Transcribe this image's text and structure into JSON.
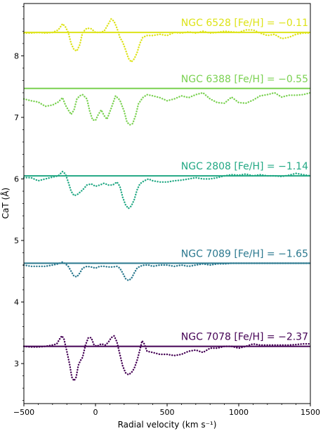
{
  "chart_data": {
    "type": "line",
    "xlabel": "Radial velocity (km s⁻¹)",
    "ylabel": "CaT (Å)",
    "xlim": [
      -500,
      1500
    ],
    "ylim": [
      2.35,
      8.85
    ],
    "x_ticks": [
      -500,
      0,
      500,
      1000,
      1500
    ],
    "x_tick_labels": [
      "−500",
      "0",
      "500",
      "1000",
      "1500"
    ],
    "y_ticks": [
      3,
      4,
      5,
      6,
      7,
      8
    ],
    "y_tick_labels": [
      "3",
      "4",
      "5",
      "6",
      "7",
      "8"
    ],
    "grid": false,
    "series": [
      {
        "name": "NGC 6528  [Fe/H] = −0.11",
        "color": "#dde318",
        "baseline": 8.38,
        "dotted": [
          [
            -500,
            8.37
          ],
          [
            -450,
            8.37
          ],
          [
            -400,
            8.38
          ],
          [
            -350,
            8.37
          ],
          [
            -300,
            8.38
          ],
          [
            -260,
            8.42
          ],
          [
            -230,
            8.52
          ],
          [
            -210,
            8.47
          ],
          [
            -190,
            8.38
          ],
          [
            -170,
            8.2
          ],
          [
            -150,
            8.1
          ],
          [
            -130,
            8.08
          ],
          [
            -110,
            8.18
          ],
          [
            -90,
            8.38
          ],
          [
            -60,
            8.45
          ],
          [
            -30,
            8.44
          ],
          [
            0,
            8.38
          ],
          [
            30,
            8.38
          ],
          [
            60,
            8.4
          ],
          [
            90,
            8.52
          ],
          [
            110,
            8.6
          ],
          [
            130,
            8.56
          ],
          [
            150,
            8.45
          ],
          [
            170,
            8.3
          ],
          [
            190,
            8.22
          ],
          [
            210,
            8.1
          ],
          [
            230,
            7.96
          ],
          [
            250,
            7.9
          ],
          [
            270,
            7.95
          ],
          [
            290,
            8.05
          ],
          [
            310,
            8.2
          ],
          [
            330,
            8.3
          ],
          [
            360,
            8.33
          ],
          [
            400,
            8.33
          ],
          [
            450,
            8.35
          ],
          [
            500,
            8.33
          ],
          [
            550,
            8.38
          ],
          [
            600,
            8.37
          ],
          [
            650,
            8.39
          ],
          [
            700,
            8.37
          ],
          [
            750,
            8.4
          ],
          [
            800,
            8.37
          ],
          [
            850,
            8.38
          ],
          [
            900,
            8.4
          ],
          [
            950,
            8.39
          ],
          [
            1000,
            8.38
          ],
          [
            1050,
            8.42
          ],
          [
            1100,
            8.42
          ],
          [
            1150,
            8.37
          ],
          [
            1200,
            8.33
          ],
          [
            1250,
            8.35
          ],
          [
            1300,
            8.28
          ],
          [
            1350,
            8.3
          ],
          [
            1400,
            8.35
          ],
          [
            1450,
            8.37
          ],
          [
            1500,
            8.37
          ]
        ]
      },
      {
        "name": "NGC 6388  [Fe/H] = −0.55",
        "color": "#7ad151",
        "baseline": 7.47,
        "dotted": [
          [
            -500,
            7.3
          ],
          [
            -450,
            7.27
          ],
          [
            -400,
            7.25
          ],
          [
            -350,
            7.18
          ],
          [
            -300,
            7.2
          ],
          [
            -260,
            7.25
          ],
          [
            -230,
            7.32
          ],
          [
            -210,
            7.2
          ],
          [
            -190,
            7.12
          ],
          [
            -170,
            7.05
          ],
          [
            -150,
            7.12
          ],
          [
            -130,
            7.3
          ],
          [
            -110,
            7.35
          ],
          [
            -90,
            7.37
          ],
          [
            -60,
            7.3
          ],
          [
            -40,
            7.1
          ],
          [
            -20,
            6.96
          ],
          [
            0,
            6.95
          ],
          [
            20,
            7.05
          ],
          [
            40,
            7.12
          ],
          [
            60,
            7.03
          ],
          [
            80,
            6.97
          ],
          [
            110,
            7.15
          ],
          [
            140,
            7.35
          ],
          [
            170,
            7.28
          ],
          [
            200,
            7.1
          ],
          [
            220,
            6.92
          ],
          [
            240,
            6.88
          ],
          [
            260,
            6.9
          ],
          [
            280,
            7.03
          ],
          [
            300,
            7.22
          ],
          [
            330,
            7.32
          ],
          [
            360,
            7.37
          ],
          [
            400,
            7.35
          ],
          [
            450,
            7.32
          ],
          [
            500,
            7.27
          ],
          [
            550,
            7.3
          ],
          [
            600,
            7.35
          ],
          [
            650,
            7.32
          ],
          [
            700,
            7.37
          ],
          [
            750,
            7.4
          ],
          [
            800,
            7.3
          ],
          [
            850,
            7.24
          ],
          [
            900,
            7.23
          ],
          [
            950,
            7.33
          ],
          [
            1000,
            7.24
          ],
          [
            1050,
            7.23
          ],
          [
            1100,
            7.28
          ],
          [
            1150,
            7.35
          ],
          [
            1200,
            7.37
          ],
          [
            1250,
            7.4
          ],
          [
            1300,
            7.33
          ],
          [
            1350,
            7.36
          ],
          [
            1400,
            7.36
          ],
          [
            1450,
            7.37
          ],
          [
            1500,
            7.4
          ]
        ]
      },
      {
        "name": "NGC 2808  [Fe/H] = −1.14",
        "color": "#22a884",
        "baseline": 6.05,
        "dotted": [
          [
            -500,
            6.02
          ],
          [
            -450,
            6.02
          ],
          [
            -400,
            5.97
          ],
          [
            -350,
            6.0
          ],
          [
            -300,
            6.03
          ],
          [
            -260,
            6.05
          ],
          [
            -230,
            6.12
          ],
          [
            -210,
            6.08
          ],
          [
            -190,
            5.95
          ],
          [
            -170,
            5.8
          ],
          [
            -150,
            5.73
          ],
          [
            -130,
            5.74
          ],
          [
            -110,
            5.78
          ],
          [
            -90,
            5.82
          ],
          [
            -60,
            5.9
          ],
          [
            -30,
            5.92
          ],
          [
            0,
            5.88
          ],
          [
            30,
            5.9
          ],
          [
            60,
            5.93
          ],
          [
            90,
            5.9
          ],
          [
            120,
            5.9
          ],
          [
            150,
            5.95
          ],
          [
            170,
            5.88
          ],
          [
            190,
            5.7
          ],
          [
            210,
            5.58
          ],
          [
            230,
            5.52
          ],
          [
            250,
            5.56
          ],
          [
            270,
            5.66
          ],
          [
            290,
            5.82
          ],
          [
            310,
            5.92
          ],
          [
            340,
            5.97
          ],
          [
            370,
            6.0
          ],
          [
            400,
            5.97
          ],
          [
            450,
            5.95
          ],
          [
            500,
            5.95
          ],
          [
            550,
            5.97
          ],
          [
            600,
            5.98
          ],
          [
            650,
            6.0
          ],
          [
            700,
            6.02
          ],
          [
            750,
            6.0
          ],
          [
            800,
            6.0
          ],
          [
            850,
            6.02
          ],
          [
            900,
            6.05
          ],
          [
            950,
            6.07
          ],
          [
            1000,
            6.06
          ],
          [
            1050,
            6.08
          ],
          [
            1100,
            6.05
          ],
          [
            1150,
            6.07
          ],
          [
            1200,
            6.05
          ],
          [
            1250,
            6.05
          ],
          [
            1300,
            6.04
          ],
          [
            1350,
            6.06
          ],
          [
            1400,
            6.09
          ],
          [
            1450,
            6.07
          ],
          [
            1500,
            6.05
          ]
        ]
      },
      {
        "name": "NGC 7089  [Fe/H] = −1.65",
        "color": "#2a788e",
        "baseline": 4.63,
        "dotted": [
          [
            -500,
            4.6
          ],
          [
            -450,
            4.58
          ],
          [
            -400,
            4.58
          ],
          [
            -350,
            4.58
          ],
          [
            -300,
            4.6
          ],
          [
            -260,
            4.62
          ],
          [
            -230,
            4.65
          ],
          [
            -210,
            4.62
          ],
          [
            -190,
            4.58
          ],
          [
            -170,
            4.5
          ],
          [
            -150,
            4.42
          ],
          [
            -130,
            4.41
          ],
          [
            -110,
            4.47
          ],
          [
            -90,
            4.55
          ],
          [
            -60,
            4.58
          ],
          [
            -30,
            4.57
          ],
          [
            0,
            4.55
          ],
          [
            30,
            4.58
          ],
          [
            60,
            4.58
          ],
          [
            90,
            4.57
          ],
          [
            120,
            4.57
          ],
          [
            150,
            4.58
          ],
          [
            170,
            4.55
          ],
          [
            190,
            4.47
          ],
          [
            210,
            4.38
          ],
          [
            230,
            4.35
          ],
          [
            250,
            4.38
          ],
          [
            270,
            4.47
          ],
          [
            290,
            4.55
          ],
          [
            310,
            4.58
          ],
          [
            340,
            4.6
          ],
          [
            370,
            4.6
          ],
          [
            400,
            4.58
          ],
          [
            450,
            4.6
          ],
          [
            500,
            4.6
          ],
          [
            550,
            4.58
          ],
          [
            600,
            4.6
          ],
          [
            650,
            4.58
          ],
          [
            700,
            4.6
          ],
          [
            750,
            4.62
          ],
          [
            800,
            4.6
          ],
          [
            850,
            4.62
          ],
          [
            900,
            4.62
          ],
          [
            950,
            4.63
          ],
          [
            1000,
            4.63
          ],
          [
            1050,
            4.63
          ],
          [
            1100,
            4.63
          ],
          [
            1150,
            4.63
          ],
          [
            1200,
            4.63
          ],
          [
            1250,
            4.63
          ],
          [
            1300,
            4.63
          ],
          [
            1350,
            4.63
          ],
          [
            1400,
            4.63
          ],
          [
            1450,
            4.63
          ],
          [
            1500,
            4.63
          ]
        ]
      },
      {
        "name": "NGC 7078  [Fe/H] = −2.37",
        "color": "#440154",
        "baseline": 3.28,
        "dotted": [
          [
            -500,
            3.28
          ],
          [
            -450,
            3.27
          ],
          [
            -400,
            3.27
          ],
          [
            -350,
            3.28
          ],
          [
            -300,
            3.3
          ],
          [
            -270,
            3.32
          ],
          [
            -250,
            3.4
          ],
          [
            -235,
            3.45
          ],
          [
            -220,
            3.4
          ],
          [
            -200,
            3.2
          ],
          [
            -180,
            2.98
          ],
          [
            -165,
            2.78
          ],
          [
            -150,
            2.72
          ],
          [
            -135,
            2.78
          ],
          [
            -120,
            2.97
          ],
          [
            -105,
            3.05
          ],
          [
            -90,
            3.1
          ],
          [
            -70,
            3.3
          ],
          [
            -50,
            3.42
          ],
          [
            -30,
            3.42
          ],
          [
            -10,
            3.3
          ],
          [
            10,
            3.28
          ],
          [
            40,
            3.32
          ],
          [
            70,
            3.3
          ],
          [
            90,
            3.35
          ],
          [
            110,
            3.42
          ],
          [
            130,
            3.45
          ],
          [
            150,
            3.35
          ],
          [
            170,
            3.15
          ],
          [
            190,
            2.96
          ],
          [
            210,
            2.85
          ],
          [
            230,
            2.82
          ],
          [
            250,
            2.85
          ],
          [
            270,
            2.92
          ],
          [
            290,
            3.05
          ],
          [
            310,
            3.22
          ],
          [
            325,
            3.37
          ],
          [
            340,
            3.32
          ],
          [
            360,
            3.2
          ],
          [
            400,
            3.18
          ],
          [
            450,
            3.15
          ],
          [
            500,
            3.15
          ],
          [
            550,
            3.13
          ],
          [
            600,
            3.15
          ],
          [
            650,
            3.2
          ],
          [
            700,
            3.22
          ],
          [
            750,
            3.18
          ],
          [
            800,
            3.25
          ],
          [
            850,
            3.25
          ],
          [
            900,
            3.28
          ],
          [
            950,
            3.28
          ],
          [
            1000,
            3.25
          ],
          [
            1050,
            3.28
          ],
          [
            1100,
            3.32
          ],
          [
            1150,
            3.3
          ],
          [
            1200,
            3.3
          ],
          [
            1250,
            3.3
          ],
          [
            1300,
            3.3
          ],
          [
            1350,
            3.3
          ],
          [
            1400,
            3.31
          ],
          [
            1450,
            3.32
          ],
          [
            1500,
            3.32
          ]
        ]
      }
    ]
  }
}
